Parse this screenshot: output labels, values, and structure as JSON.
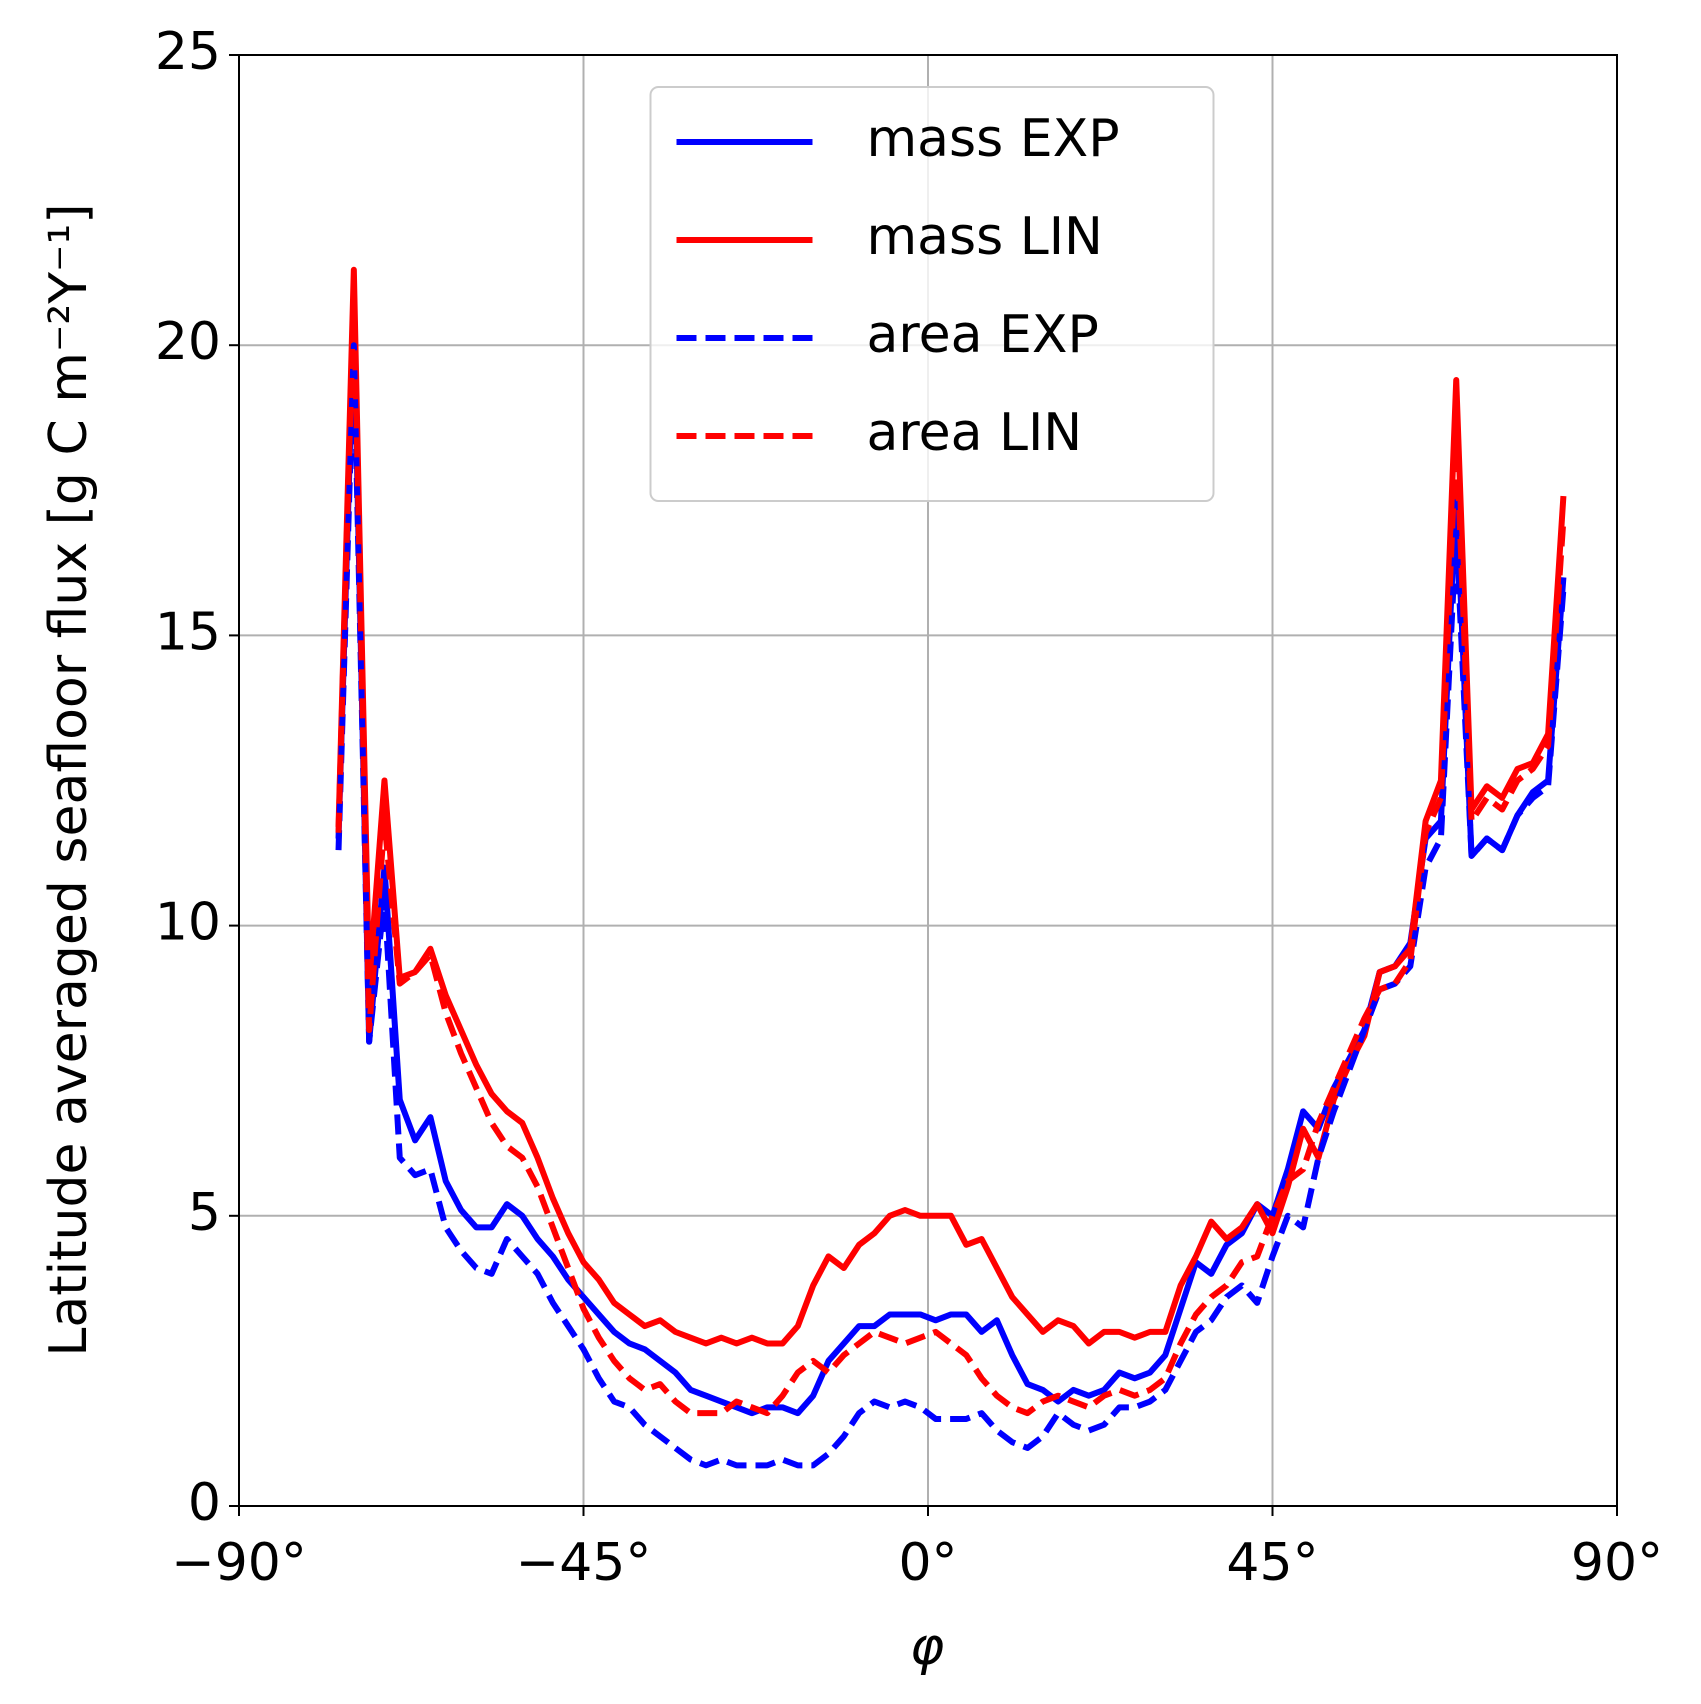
{
  "chart_data": {
    "type": "line",
    "xlabel": "φ",
    "ylabel": "Latitude averaged seafloor flux [g C m⁻²Y⁻¹]",
    "x": [
      -77,
      -75,
      -73,
      -71,
      -69,
      -67,
      -65,
      -63,
      -61,
      -59,
      -57,
      -55,
      -53,
      -51,
      -49,
      -47,
      -45,
      -43,
      -41,
      -39,
      -37,
      -35,
      -33,
      -31,
      -29,
      -27,
      -25,
      -23,
      -21,
      -19,
      -17,
      -15,
      -13,
      -11,
      -9,
      -7,
      -5,
      -3,
      -1,
      1,
      3,
      5,
      7,
      9,
      11,
      13,
      15,
      17,
      19,
      21,
      23,
      25,
      27,
      29,
      31,
      33,
      35,
      37,
      39,
      41,
      43,
      45,
      47,
      49,
      51,
      53,
      55,
      57,
      59,
      61,
      63,
      65,
      67,
      69,
      71,
      73,
      75,
      77,
      79,
      81,
      83
    ],
    "series": [
      {
        "name": "mass EXP",
        "color": "#0000ff",
        "dash": false,
        "values": [
          11.5,
          20.5,
          8.0,
          11.0,
          7.0,
          6.3,
          6.7,
          5.6,
          5.1,
          4.8,
          4.8,
          5.2,
          5.0,
          4.6,
          4.3,
          3.9,
          3.6,
          3.3,
          3.0,
          2.8,
          2.7,
          2.5,
          2.3,
          2.0,
          1.9,
          1.8,
          1.7,
          1.6,
          1.7,
          1.7,
          1.6,
          1.9,
          2.5,
          2.8,
          3.1,
          3.1,
          3.3,
          3.3,
          3.3,
          3.2,
          3.3,
          3.3,
          3.0,
          3.2,
          2.6,
          2.1,
          2.0,
          1.8,
          2.0,
          1.9,
          2.0,
          2.3,
          2.2,
          2.3,
          2.6,
          3.4,
          4.2,
          4.0,
          4.5,
          4.7,
          5.2,
          5.0,
          5.8,
          6.8,
          6.5,
          7.2,
          7.7,
          8.2,
          9.2,
          9.3,
          9.7,
          11.5,
          11.8,
          17.5,
          11.2,
          11.5,
          11.3,
          11.9,
          12.3,
          12.5,
          16.0
        ]
      },
      {
        "name": "mass LIN",
        "color": "#ff0000",
        "dash": false,
        "values": [
          11.7,
          21.3,
          9.0,
          12.5,
          9.1,
          9.2,
          9.6,
          8.8,
          8.2,
          7.6,
          7.1,
          6.8,
          6.6,
          6.0,
          5.3,
          4.7,
          4.2,
          3.9,
          3.5,
          3.3,
          3.1,
          3.2,
          3.0,
          2.9,
          2.8,
          2.9,
          2.8,
          2.9,
          2.8,
          2.8,
          3.1,
          3.8,
          4.3,
          4.1,
          4.5,
          4.7,
          5.0,
          5.1,
          5.0,
          5.0,
          5.0,
          4.5,
          4.6,
          4.1,
          3.6,
          3.3,
          3.0,
          3.2,
          3.1,
          2.8,
          3.0,
          3.0,
          2.9,
          3.0,
          3.0,
          3.8,
          4.3,
          4.9,
          4.6,
          4.8,
          5.2,
          4.7,
          5.5,
          6.5,
          6.0,
          7.0,
          7.6,
          8.1,
          9.2,
          9.3,
          9.6,
          11.8,
          12.5,
          19.4,
          12.0,
          12.4,
          12.2,
          12.7,
          12.8,
          13.3,
          17.4
        ]
      },
      {
        "name": "area EXP",
        "color": "#0000ff",
        "dash": true,
        "values": [
          11.3,
          20.0,
          8.0,
          10.5,
          6.0,
          5.7,
          5.8,
          4.8,
          4.4,
          4.1,
          4.0,
          4.6,
          4.3,
          4.0,
          3.5,
          3.1,
          2.7,
          2.2,
          1.8,
          1.7,
          1.4,
          1.2,
          1.0,
          0.8,
          0.7,
          0.8,
          0.7,
          0.7,
          0.7,
          0.8,
          0.7,
          0.7,
          0.9,
          1.2,
          1.6,
          1.8,
          1.7,
          1.8,
          1.7,
          1.5,
          1.5,
          1.5,
          1.6,
          1.3,
          1.1,
          1.0,
          1.2,
          1.6,
          1.4,
          1.3,
          1.4,
          1.7,
          1.7,
          1.8,
          2.0,
          2.5,
          3.0,
          3.2,
          3.6,
          3.8,
          3.5,
          4.3,
          5.0,
          4.8,
          6.0,
          6.8,
          7.5,
          8.2,
          8.9,
          9.0,
          9.3,
          11.0,
          11.5,
          16.8,
          11.2,
          11.5,
          11.3,
          11.9,
          12.2,
          12.4,
          15.8
        ]
      },
      {
        "name": "area LIN",
        "color": "#ff0000",
        "dash": true,
        "values": [
          11.6,
          21.0,
          8.2,
          11.8,
          9.0,
          9.2,
          9.5,
          8.5,
          7.8,
          7.2,
          6.6,
          6.2,
          6.0,
          5.5,
          4.8,
          4.1,
          3.4,
          2.9,
          2.5,
          2.2,
          2.0,
          2.1,
          1.8,
          1.6,
          1.6,
          1.6,
          1.8,
          1.7,
          1.6,
          1.9,
          2.3,
          2.5,
          2.3,
          2.6,
          2.8,
          3.0,
          2.9,
          2.8,
          2.9,
          3.0,
          2.8,
          2.6,
          2.2,
          1.9,
          1.7,
          1.6,
          1.8,
          1.9,
          1.8,
          1.7,
          1.9,
          2.0,
          1.9,
          2.0,
          2.2,
          2.8,
          3.3,
          3.6,
          3.8,
          4.2,
          4.3,
          5.0,
          5.6,
          5.8,
          6.6,
          7.2,
          7.8,
          8.4,
          8.9,
          9.0,
          9.4,
          11.6,
          12.2,
          18.5,
          11.8,
          12.2,
          12.0,
          12.5,
          12.7,
          13.1,
          17.0
        ]
      }
    ],
    "xlim": [
      -90,
      90
    ],
    "xticks": [
      {
        "value": -90,
        "label": "−90°"
      },
      {
        "value": -45,
        "label": "−45°"
      },
      {
        "value": 0,
        "label": "0°"
      },
      {
        "value": 45,
        "label": "45°"
      },
      {
        "value": 90,
        "label": "90°"
      }
    ],
    "ylim": [
      0,
      25
    ],
    "yticks": [
      0,
      5,
      10,
      15,
      20,
      25
    ],
    "grid": true,
    "legend": "upper center"
  }
}
